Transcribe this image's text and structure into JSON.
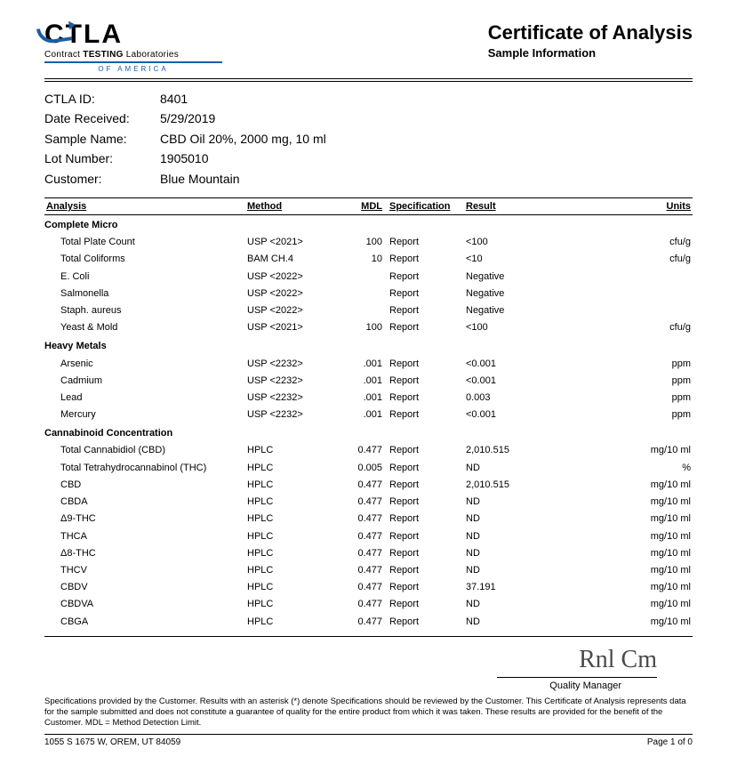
{
  "logo": {
    "brand": "CTLA",
    "line2_pre": "Contract ",
    "line2_bold": "TESTING",
    "line2_post": " Laboratories",
    "line3": "OF AMERICA"
  },
  "title": {
    "main": "Certificate of Analysis",
    "sub": "Sample Information"
  },
  "meta": {
    "labels": {
      "ctla_id": "CTLA ID:",
      "date_received": "Date Received:",
      "sample_name": "Sample Name:",
      "lot_number": "Lot Number:",
      "customer": "Customer:"
    },
    "ctla_id": "8401",
    "date_received": "5/29/2019",
    "sample_name": "CBD Oil 20%, 2000 mg, 10 ml",
    "lot_number": "1905010",
    "customer": "Blue Mountain"
  },
  "table": {
    "headers": {
      "analysis": "Analysis",
      "method": "Method",
      "mdl": "MDL",
      "specification": "Specification",
      "result": "Result",
      "units": "Units"
    },
    "sections": [
      {
        "title": "Complete Micro",
        "rows": [
          {
            "analysis": "Total Plate Count",
            "method": "USP <2021>",
            "mdl": "100",
            "spec": "Report",
            "result": "<100",
            "units": "cfu/g"
          },
          {
            "analysis": "Total Coliforms",
            "method": "BAM CH.4",
            "mdl": "10",
            "spec": "Report",
            "result": "<10",
            "units": "cfu/g"
          },
          {
            "analysis": "E. Coli",
            "method": "USP <2022>",
            "mdl": "",
            "spec": "Report",
            "result": "Negative",
            "units": ""
          },
          {
            "analysis": "Salmonella",
            "method": "USP <2022>",
            "mdl": "",
            "spec": "Report",
            "result": "Negative",
            "units": ""
          },
          {
            "analysis": "Staph. aureus",
            "method": "USP <2022>",
            "mdl": "",
            "spec": "Report",
            "result": "Negative",
            "units": ""
          },
          {
            "analysis": "Yeast & Mold",
            "method": "USP <2021>",
            "mdl": "100",
            "spec": "Report",
            "result": "<100",
            "units": "cfu/g"
          }
        ]
      },
      {
        "title": "Heavy Metals",
        "rows": [
          {
            "analysis": "Arsenic",
            "method": "USP <2232>",
            "mdl": ".001",
            "spec": "Report",
            "result": "<0.001",
            "units": "ppm"
          },
          {
            "analysis": "Cadmium",
            "method": "USP <2232>",
            "mdl": ".001",
            "spec": "Report",
            "result": "<0.001",
            "units": "ppm"
          },
          {
            "analysis": "Lead",
            "method": "USP <2232>",
            "mdl": ".001",
            "spec": "Report",
            "result": "0.003",
            "units": "ppm"
          },
          {
            "analysis": "Mercury",
            "method": "USP <2232>",
            "mdl": ".001",
            "spec": "Report",
            "result": "<0.001",
            "units": "ppm"
          }
        ]
      },
      {
        "title": "Cannabinoid Concentration",
        "rows": [
          {
            "analysis": "Total Cannabidiol (CBD)",
            "method": "HPLC",
            "mdl": "0.477",
            "spec": "Report",
            "result": "2,010.515",
            "units": "mg/10 ml"
          },
          {
            "analysis": "Total Tetrahydrocannabinol (THC)",
            "method": "HPLC",
            "mdl": "0.005",
            "spec": "Report",
            "result": "ND",
            "units": "%"
          },
          {
            "analysis": "CBD",
            "method": "HPLC",
            "mdl": "0.477",
            "spec": "Report",
            "result": "2,010.515",
            "units": "mg/10 ml"
          },
          {
            "analysis": "CBDA",
            "method": "HPLC",
            "mdl": "0.477",
            "spec": "Report",
            "result": "ND",
            "units": "mg/10 ml"
          },
          {
            "analysis": "Δ9-THC",
            "method": "HPLC",
            "mdl": "0.477",
            "spec": "Report",
            "result": "ND",
            "units": "mg/10 ml"
          },
          {
            "analysis": "THCA",
            "method": "HPLC",
            "mdl": "0.477",
            "spec": "Report",
            "result": "ND",
            "units": "mg/10 ml"
          },
          {
            "analysis": "Δ8-THC",
            "method": "HPLC",
            "mdl": "0.477",
            "spec": "Report",
            "result": "ND",
            "units": "mg/10 ml"
          },
          {
            "analysis": "THCV",
            "method": "HPLC",
            "mdl": "0.477",
            "spec": "Report",
            "result": "ND",
            "units": "mg/10 ml"
          },
          {
            "analysis": "CBDV",
            "method": "HPLC",
            "mdl": "0.477",
            "spec": "Report",
            "result": "37.191",
            "units": "mg/10 ml"
          },
          {
            "analysis": "CBDVA",
            "method": "HPLC",
            "mdl": "0.477",
            "spec": "Report",
            "result": "ND",
            "units": "mg/10 ml"
          },
          {
            "analysis": "CBGA",
            "method": "HPLC",
            "mdl": "0.477",
            "spec": "Report",
            "result": "ND",
            "units": "mg/10 ml"
          }
        ]
      }
    ]
  },
  "signature": {
    "label": "Quality Manager"
  },
  "fineprint": "Specifications provided by the Customer. Results with an asterisk (*) denote Specifications should be reviewed by the Customer. This Certificate of Analysis represents data for the sample submitted and does not constitute a guarantee of quality for the entire product from which it was taken. These results are provided for the benefit of the Customer.  MDL = Method Detection Limit.",
  "footer": {
    "address": "1055 S 1675 W, OREM, UT 84059",
    "page": "Page 1 of 0"
  }
}
